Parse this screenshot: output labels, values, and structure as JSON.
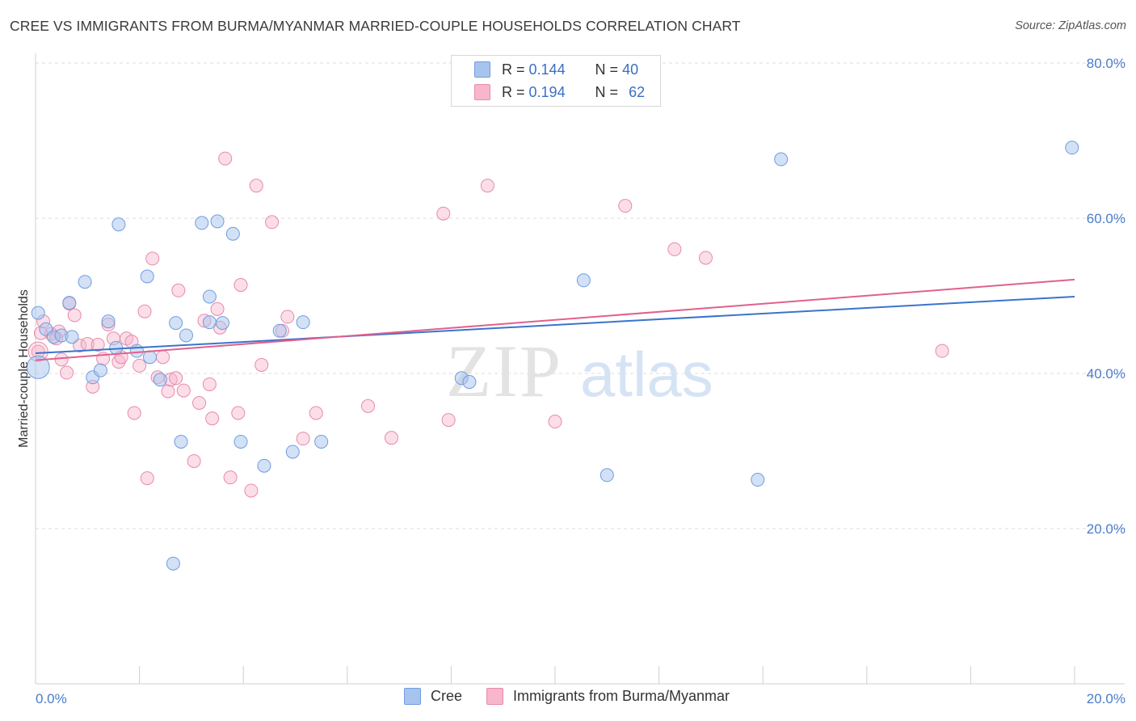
{
  "title": "CREE VS IMMIGRANTS FROM BURMA/MYANMAR MARRIED-COUPLE HOUSEHOLDS CORRELATION CHART",
  "source": "Source: ZipAtlas.com",
  "watermark": {
    "zip": "ZIP",
    "atlas": "atlas"
  },
  "legend": {
    "r_label": "R =",
    "n_label": "N =",
    "series": [
      {
        "r": "0.144",
        "n": "40",
        "color": "#a7c4ee",
        "border": "#6f9ddf"
      },
      {
        "r": "0.194",
        "n": "62",
        "color": "#f7b6cb",
        "border": "#e88aab"
      }
    ]
  },
  "bottom_legend": [
    "Cree",
    "Immigrants from Burma/Myanmar"
  ],
  "colors": {
    "cree_fill": "#a7c4ee",
    "cree_stroke": "#6f9ddf",
    "cree_line": "#3a74cc",
    "burma_fill": "#f7b6cb",
    "burma_stroke": "#e88aab",
    "burma_line": "#e0608f",
    "grid": "#dddddd",
    "tick_text": "#4a7cc9"
  },
  "chart_data": {
    "type": "scatter",
    "title": "CREE VS IMMIGRANTS FROM BURMA/MYANMAR MARRIED-COUPLE HOUSEHOLDS CORRELATION CHART",
    "xlabel": "",
    "ylabel": "Married-couple Households",
    "xlim": [
      0,
      20
    ],
    "ylim": [
      0,
      80
    ],
    "x_tick_labels": [
      "0.0%",
      "20.0%"
    ],
    "y_ticks": [
      20,
      40,
      60,
      80
    ],
    "y_tick_labels": [
      "20.0%",
      "40.0%",
      "60.0%",
      "80.0%"
    ],
    "grid": true,
    "series": [
      {
        "name": "Cree",
        "r": 0.144,
        "n": 40,
        "trend": {
          "x0": 0,
          "y0": 42.6,
          "x1": 20,
          "y1": 49.9
        },
        "points": [
          [
            0.05,
            40.8
          ],
          [
            0.2,
            45.7
          ],
          [
            0.35,
            44.7
          ],
          [
            0.5,
            44.9
          ],
          [
            0.7,
            44.7
          ],
          [
            0.65,
            49.1
          ],
          [
            0.95,
            51.8
          ],
          [
            1.1,
            39.5
          ],
          [
            1.25,
            40.4
          ],
          [
            1.4,
            46.7
          ],
          [
            1.6,
            59.2
          ],
          [
            1.55,
            43.3
          ],
          [
            1.95,
            42.9
          ],
          [
            2.15,
            52.5
          ],
          [
            2.2,
            42.1
          ],
          [
            2.4,
            39.2
          ],
          [
            2.65,
            15.5
          ],
          [
            2.7,
            46.5
          ],
          [
            2.8,
            31.2
          ],
          [
            2.9,
            44.9
          ],
          [
            3.2,
            59.4
          ],
          [
            3.35,
            49.9
          ],
          [
            3.35,
            46.6
          ],
          [
            3.5,
            59.6
          ],
          [
            3.6,
            46.5
          ],
          [
            3.8,
            58.0
          ],
          [
            3.95,
            31.2
          ],
          [
            4.4,
            28.1
          ],
          [
            4.7,
            45.5
          ],
          [
            4.95,
            29.9
          ],
          [
            5.15,
            46.6
          ],
          [
            5.5,
            31.2
          ],
          [
            8.2,
            39.4
          ],
          [
            8.35,
            38.9
          ],
          [
            10.55,
            52.0
          ],
          [
            11.0,
            26.9
          ],
          [
            13.9,
            26.3
          ],
          [
            14.35,
            67.6
          ],
          [
            19.95,
            69.1
          ],
          [
            0.05,
            47.8
          ]
        ]
      },
      {
        "name": "Immigrants from Burma/Myanmar",
        "r": 0.194,
        "n": 62,
        "trend": {
          "x0": 0,
          "y0": 41.7,
          "x1": 20,
          "y1": 52.1
        },
        "points": [
          [
            0.05,
            42.8
          ],
          [
            0.15,
            46.7
          ],
          [
            0.3,
            45.1
          ],
          [
            0.45,
            45.4
          ],
          [
            0.5,
            41.8
          ],
          [
            0.6,
            40.1
          ],
          [
            0.65,
            49.0
          ],
          [
            0.75,
            47.5
          ],
          [
            0.85,
            43.6
          ],
          [
            1.0,
            43.8
          ],
          [
            1.1,
            38.3
          ],
          [
            1.2,
            43.7
          ],
          [
            1.3,
            41.9
          ],
          [
            1.4,
            46.3
          ],
          [
            1.5,
            44.5
          ],
          [
            1.6,
            41.5
          ],
          [
            1.65,
            42.1
          ],
          [
            1.75,
            44.5
          ],
          [
            1.85,
            44.1
          ],
          [
            1.9,
            34.9
          ],
          [
            2.0,
            41.0
          ],
          [
            2.1,
            48.0
          ],
          [
            2.15,
            26.5
          ],
          [
            2.25,
            54.8
          ],
          [
            2.35,
            39.5
          ],
          [
            2.45,
            42.1
          ],
          [
            2.55,
            37.7
          ],
          [
            2.6,
            39.2
          ],
          [
            2.7,
            39.4
          ],
          [
            2.75,
            50.7
          ],
          [
            2.85,
            37.8
          ],
          [
            3.05,
            28.7
          ],
          [
            3.15,
            36.2
          ],
          [
            3.25,
            46.8
          ],
          [
            3.35,
            38.6
          ],
          [
            3.4,
            34.2
          ],
          [
            3.5,
            48.3
          ],
          [
            3.55,
            45.9
          ],
          [
            3.65,
            67.7
          ],
          [
            3.75,
            26.6
          ],
          [
            3.9,
            34.9
          ],
          [
            3.95,
            51.4
          ],
          [
            4.15,
            24.9
          ],
          [
            4.25,
            64.2
          ],
          [
            4.35,
            41.1
          ],
          [
            4.55,
            59.5
          ],
          [
            4.75,
            45.5
          ],
          [
            4.85,
            47.3
          ],
          [
            5.15,
            31.6
          ],
          [
            5.4,
            34.9
          ],
          [
            6.4,
            35.8
          ],
          [
            6.85,
            31.7
          ],
          [
            7.85,
            60.6
          ],
          [
            7.95,
            34.0
          ],
          [
            8.7,
            64.2
          ],
          [
            10.0,
            33.8
          ],
          [
            11.35,
            61.6
          ],
          [
            12.3,
            56.0
          ],
          [
            12.9,
            54.9
          ],
          [
            17.45,
            42.9
          ],
          [
            0.1,
            45.2
          ],
          [
            0.4,
            44.5
          ]
        ]
      }
    ]
  }
}
